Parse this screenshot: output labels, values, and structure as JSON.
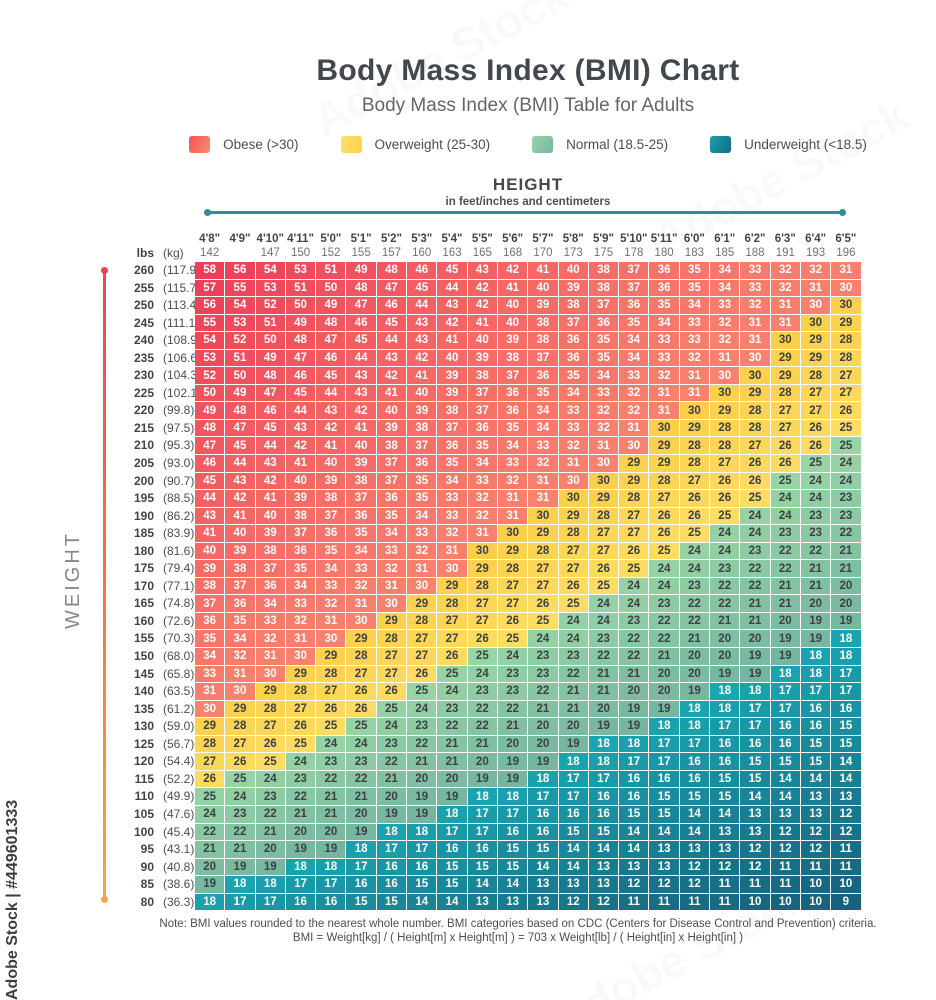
{
  "page": {
    "title": "Body Mass Index (BMI) Chart",
    "subtitle": "Body Mass Index (BMI) Table for Adults"
  },
  "legend": {
    "items": [
      {
        "label": "Obese (>30)",
        "color_from": "#f4505c",
        "color_to": "#f9906c"
      },
      {
        "label": "Overweight (25-30)",
        "color_from": "#fbe26a",
        "color_to": "#fbd24b"
      },
      {
        "label": "Normal (18.5-25)",
        "color_from": "#9bd3a6",
        "color_to": "#74b6a1"
      },
      {
        "label": "Underweight (<18.5)",
        "color_from": "#1b9fae",
        "color_to": "#136a82"
      }
    ]
  },
  "height_axis": {
    "label": "HEIGHT",
    "sublabel": "in feet/inches and centimeters",
    "line_color": "#2e8d99"
  },
  "weight_axis": {
    "label": "WEIGHT",
    "line_color_top": "#ef4354",
    "line_color_bottom": "#f7a44e"
  },
  "table": {
    "row_units": {
      "lbs": "lbs",
      "kg": "(kg)"
    }
  },
  "chart_data": {
    "type": "heatmap",
    "title": "Body Mass Index (BMI) Chart",
    "x_label": "HEIGHT",
    "x_sublabel": "in feet/inches and centimeters",
    "y_label": "WEIGHT",
    "columns_feet_inches": [
      "4'8\"",
      "4'9\"",
      "4'10\"",
      "4'11\"",
      "5'0\"",
      "5'1\"",
      "5'2\"",
      "5'3\"",
      "5'4\"",
      "5'5\"",
      "5'6\"",
      "5'7\"",
      "5'8\"",
      "5'9\"",
      "5'10\"",
      "5'11\"",
      "6'0\"",
      "6'1\"",
      "6'2\"",
      "6'3\"",
      "6'4\"",
      "6'5\""
    ],
    "columns_cm": [
      "142",
      "",
      "147",
      "150",
      "152",
      "155",
      "157",
      "160",
      "163",
      "165",
      "168",
      "170",
      "173",
      "175",
      "178",
      "180",
      "183",
      "185",
      "188",
      "191",
      "193",
      "196"
    ],
    "heights_inches": [
      56,
      57,
      58,
      59,
      60,
      61,
      62,
      63,
      64,
      65,
      66,
      67,
      68,
      69,
      70,
      71,
      72,
      73,
      74,
      75,
      76,
      77
    ],
    "rows_lbs": [
      260,
      255,
      250,
      245,
      240,
      235,
      230,
      225,
      220,
      215,
      210,
      205,
      200,
      195,
      190,
      185,
      180,
      175,
      170,
      165,
      160,
      155,
      150,
      145,
      140,
      135,
      130,
      125,
      120,
      115,
      110,
      105,
      100,
      95,
      90,
      85,
      80
    ],
    "rows_kg_labels": [
      "(117.9)",
      "(115.7)",
      "(113.4)",
      "(111.1)",
      "(108.9)",
      "(106.6)",
      "(104.3)",
      "(102.1)",
      "(99.8)",
      "(97.5)",
      "(95.3)",
      "(93.0)",
      "(90.7)",
      "(88.5)",
      "(86.2)",
      "(83.9)",
      "(81.6)",
      "(79.4)",
      "(77.1)",
      "(74.8)",
      "(72.6)",
      "(70.3)",
      "(68.0)",
      "(65.8)",
      "(63.5)",
      "(61.2)",
      "(59.0)",
      "(56.7)",
      "(54.4)",
      "(52.2)",
      "(49.9)",
      "(47.6)",
      "(45.4)",
      "(43.1)",
      "(40.8)",
      "(38.6)",
      "(36.3)"
    ],
    "values": [
      [
        58,
        56,
        54,
        53,
        51,
        49,
        48,
        46,
        45,
        43,
        42,
        41,
        40,
        38,
        37,
        36,
        35,
        34,
        33,
        32,
        32,
        31
      ],
      [
        57,
        55,
        53,
        51,
        50,
        48,
        47,
        45,
        44,
        42,
        41,
        40,
        39,
        38,
        37,
        36,
        35,
        34,
        33,
        32,
        31,
        30
      ],
      [
        56,
        54,
        52,
        50,
        49,
        47,
        46,
        44,
        43,
        42,
        40,
        39,
        38,
        37,
        36,
        35,
        34,
        33,
        32,
        31,
        30,
        30
      ],
      [
        55,
        53,
        51,
        49,
        48,
        46,
        45,
        43,
        42,
        41,
        40,
        38,
        37,
        36,
        35,
        34,
        33,
        32,
        31,
        31,
        30,
        29
      ],
      [
        54,
        52,
        50,
        48,
        47,
        45,
        44,
        43,
        41,
        40,
        39,
        38,
        36,
        35,
        34,
        33,
        33,
        32,
        31,
        30,
        29,
        28
      ],
      [
        53,
        51,
        49,
        47,
        46,
        44,
        43,
        42,
        40,
        39,
        38,
        37,
        36,
        35,
        34,
        33,
        32,
        31,
        30,
        29,
        29,
        28
      ],
      [
        52,
        50,
        48,
        46,
        45,
        43,
        42,
        41,
        39,
        38,
        37,
        36,
        35,
        34,
        33,
        32,
        31,
        30,
        30,
        29,
        28,
        27
      ],
      [
        50,
        49,
        47,
        45,
        44,
        43,
        41,
        40,
        39,
        37,
        36,
        35,
        34,
        33,
        32,
        31,
        31,
        30,
        29,
        28,
        27,
        27
      ],
      [
        49,
        48,
        46,
        44,
        43,
        42,
        40,
        39,
        38,
        37,
        36,
        34,
        33,
        32,
        32,
        31,
        30,
        29,
        28,
        27,
        27,
        26
      ],
      [
        48,
        47,
        45,
        43,
        42,
        41,
        39,
        38,
        37,
        36,
        35,
        34,
        33,
        32,
        31,
        30,
        29,
        28,
        28,
        27,
        26,
        25
      ],
      [
        47,
        45,
        44,
        42,
        41,
        40,
        38,
        37,
        36,
        35,
        34,
        33,
        32,
        31,
        30,
        29,
        28,
        28,
        27,
        26,
        26,
        25
      ],
      [
        46,
        44,
        43,
        41,
        40,
        39,
        37,
        36,
        35,
        34,
        33,
        32,
        31,
        30,
        29,
        29,
        28,
        27,
        26,
        26,
        25,
        24
      ],
      [
        45,
        43,
        42,
        40,
        39,
        38,
        37,
        35,
        34,
        33,
        32,
        31,
        30,
        30,
        29,
        28,
        27,
        26,
        26,
        25,
        24,
        24
      ],
      [
        44,
        42,
        41,
        39,
        38,
        37,
        36,
        35,
        33,
        32,
        31,
        31,
        30,
        29,
        28,
        27,
        26,
        26,
        25,
        24,
        24,
        23
      ],
      [
        43,
        41,
        40,
        38,
        37,
        36,
        35,
        34,
        33,
        32,
        31,
        30,
        29,
        28,
        27,
        26,
        26,
        25,
        24,
        24,
        23,
        23
      ],
      [
        41,
        40,
        39,
        37,
        36,
        35,
        34,
        33,
        32,
        31,
        30,
        29,
        28,
        27,
        27,
        26,
        25,
        24,
        24,
        23,
        23,
        22
      ],
      [
        40,
        39,
        38,
        36,
        35,
        34,
        33,
        32,
        31,
        30,
        29,
        28,
        27,
        27,
        26,
        25,
        24,
        24,
        23,
        22,
        22,
        21
      ],
      [
        39,
        38,
        37,
        35,
        34,
        33,
        32,
        31,
        30,
        29,
        28,
        27,
        27,
        26,
        25,
        24,
        24,
        23,
        22,
        22,
        21,
        21
      ],
      [
        38,
        37,
        36,
        34,
        33,
        32,
        31,
        30,
        29,
        28,
        27,
        27,
        26,
        25,
        24,
        24,
        23,
        22,
        22,
        21,
        21,
        20
      ],
      [
        37,
        36,
        34,
        33,
        32,
        31,
        30,
        29,
        28,
        27,
        27,
        26,
        25,
        24,
        24,
        23,
        22,
        22,
        21,
        21,
        20,
        20
      ],
      [
        36,
        35,
        33,
        32,
        31,
        30,
        29,
        28,
        27,
        27,
        26,
        25,
        24,
        24,
        23,
        22,
        22,
        21,
        21,
        20,
        19,
        19
      ],
      [
        35,
        34,
        32,
        31,
        30,
        29,
        28,
        27,
        27,
        26,
        25,
        24,
        24,
        23,
        22,
        22,
        21,
        20,
        20,
        19,
        19,
        18
      ],
      [
        34,
        32,
        31,
        30,
        29,
        28,
        27,
        27,
        26,
        25,
        24,
        23,
        23,
        22,
        22,
        21,
        20,
        20,
        19,
        19,
        18,
        18
      ],
      [
        33,
        31,
        30,
        29,
        28,
        27,
        27,
        26,
        25,
        24,
        23,
        23,
        22,
        21,
        21,
        20,
        20,
        19,
        19,
        18,
        18,
        17
      ],
      [
        31,
        30,
        29,
        28,
        27,
        26,
        26,
        25,
        24,
        23,
        23,
        22,
        21,
        21,
        20,
        20,
        19,
        18,
        18,
        17,
        17,
        17
      ],
      [
        30,
        29,
        28,
        27,
        26,
        26,
        25,
        24,
        23,
        22,
        22,
        21,
        21,
        20,
        19,
        19,
        18,
        18,
        17,
        17,
        16,
        16
      ],
      [
        29,
        28,
        27,
        26,
        25,
        25,
        24,
        23,
        22,
        22,
        21,
        20,
        20,
        19,
        19,
        18,
        18,
        17,
        17,
        16,
        16,
        15
      ],
      [
        28,
        27,
        26,
        25,
        24,
        24,
        23,
        22,
        21,
        21,
        20,
        20,
        19,
        18,
        18,
        17,
        17,
        16,
        16,
        16,
        15,
        15
      ],
      [
        27,
        26,
        25,
        24,
        23,
        23,
        22,
        21,
        21,
        20,
        19,
        19,
        18,
        18,
        17,
        17,
        16,
        16,
        15,
        15,
        15,
        14
      ],
      [
        26,
        25,
        24,
        23,
        22,
        22,
        21,
        20,
        20,
        19,
        19,
        18,
        17,
        17,
        16,
        16,
        16,
        15,
        15,
        14,
        14,
        14
      ],
      [
        25,
        24,
        23,
        22,
        21,
        21,
        20,
        19,
        19,
        18,
        18,
        17,
        17,
        16,
        16,
        15,
        15,
        15,
        14,
        14,
        13,
        13
      ],
      [
        24,
        23,
        22,
        21,
        21,
        20,
        19,
        19,
        18,
        17,
        17,
        16,
        16,
        16,
        15,
        15,
        14,
        14,
        13,
        13,
        13,
        12
      ],
      [
        22,
        22,
        21,
        20,
        20,
        19,
        18,
        18,
        17,
        17,
        16,
        16,
        15,
        15,
        14,
        14,
        14,
        13,
        13,
        12,
        12,
        12
      ],
      [
        21,
        21,
        20,
        19,
        19,
        18,
        17,
        17,
        16,
        16,
        15,
        15,
        14,
        14,
        14,
        13,
        13,
        13,
        12,
        12,
        12,
        11
      ],
      [
        20,
        19,
        19,
        18,
        18,
        17,
        16,
        16,
        15,
        15,
        15,
        14,
        14,
        13,
        13,
        13,
        12,
        12,
        12,
        11,
        11,
        11
      ],
      [
        19,
        18,
        18,
        17,
        17,
        16,
        16,
        15,
        15,
        14,
        14,
        13,
        13,
        13,
        12,
        12,
        12,
        11,
        11,
        11,
        10,
        10
      ],
      [
        18,
        17,
        17,
        16,
        16,
        15,
        15,
        14,
        14,
        13,
        13,
        13,
        12,
        12,
        11,
        11,
        11,
        11,
        10,
        10,
        10,
        9
      ]
    ],
    "categories": [
      {
        "name": "Obese",
        "range": ">30",
        "color": "#f4605e"
      },
      {
        "name": "Overweight",
        "range": "25-30",
        "color": "#fbd54f"
      },
      {
        "name": "Normal",
        "range": "18.5-25",
        "color": "#86c6a2"
      },
      {
        "name": "Underweight",
        "range": "<18.5",
        "color": "#177f95"
      }
    ]
  },
  "footer": {
    "note_line1": "Note: BMI values rounded to the nearest whole number. BMI categories based on CDC (Centers for Disease Control and Prevention) criteria.",
    "note_line2": "BMI = Weight[kg] / ( Height[m] x Height[m] ) = 703 x Weight[lb] / ( Height[in] x Height[in] )"
  },
  "watermark": {
    "vertical_text": "Adobe Stock | #449601333",
    "ghost_text": "Adobe Stock"
  }
}
